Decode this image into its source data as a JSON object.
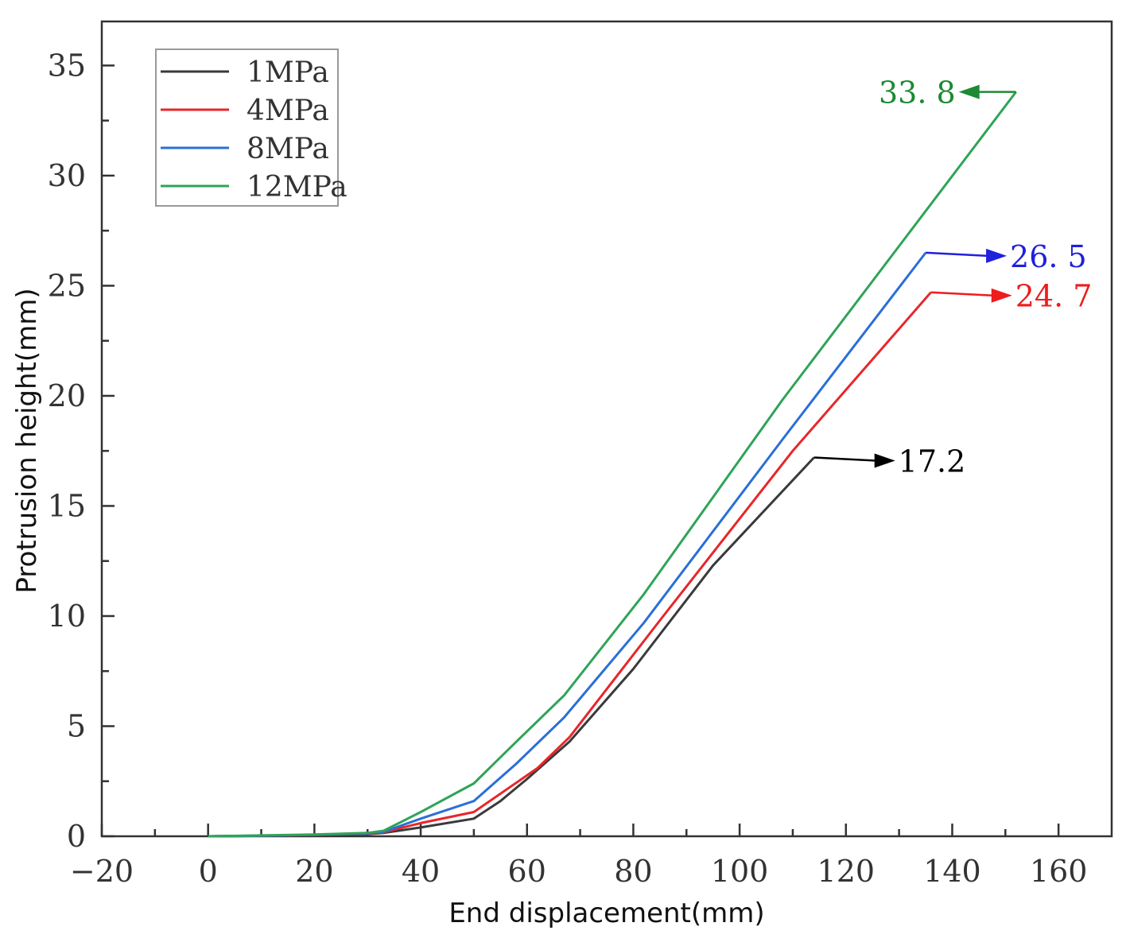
{
  "chart_data": {
    "type": "line",
    "title": "",
    "xlabel": "End displacement(mm)",
    "ylabel": "Protrusion height(mm)",
    "xlim": [
      -20,
      170
    ],
    "ylim": [
      0,
      37
    ],
    "x_ticks": [
      -20,
      0,
      20,
      40,
      60,
      80,
      100,
      120,
      140,
      160
    ],
    "x_tick_labels": [
      "−20",
      "0",
      "20",
      "40",
      "60",
      "80",
      "100",
      "120",
      "140",
      "160"
    ],
    "y_ticks": [
      0,
      5,
      10,
      15,
      20,
      25,
      30,
      35
    ],
    "y_tick_labels": [
      "0",
      "5",
      "10",
      "15",
      "20",
      "25",
      "30",
      "35"
    ],
    "grid": false,
    "legend_position": "top-left",
    "series": [
      {
        "name": "1MPa",
        "color": "#3a3a3a",
        "points": [
          [
            0,
            0
          ],
          [
            10,
            0.02
          ],
          [
            20,
            0.05
          ],
          [
            30,
            0.1
          ],
          [
            33,
            0.15
          ],
          [
            40,
            0.4
          ],
          [
            50,
            0.8
          ],
          [
            55,
            1.6
          ],
          [
            60,
            2.6
          ],
          [
            68,
            4.3
          ],
          [
            80,
            7.6
          ],
          [
            95,
            12.3
          ],
          [
            114,
            17.2
          ]
        ]
      },
      {
        "name": "4MPa",
        "color": "#e8262a",
        "points": [
          [
            0,
            0
          ],
          [
            10,
            0.03
          ],
          [
            20,
            0.06
          ],
          [
            30,
            0.12
          ],
          [
            33,
            0.18
          ],
          [
            40,
            0.6
          ],
          [
            50,
            1.1
          ],
          [
            56,
            2.1
          ],
          [
            62,
            3.1
          ],
          [
            68,
            4.5
          ],
          [
            85,
            9.8
          ],
          [
            110,
            17.5
          ],
          [
            136,
            24.7
          ]
        ]
      },
      {
        "name": "8MPa",
        "color": "#2a6fd6",
        "points": [
          [
            0,
            0
          ],
          [
            10,
            0.03
          ],
          [
            20,
            0.07
          ],
          [
            30,
            0.13
          ],
          [
            33,
            0.2
          ],
          [
            40,
            0.8
          ],
          [
            50,
            1.6
          ],
          [
            58,
            3.3
          ],
          [
            67,
            5.4
          ],
          [
            82,
            9.7
          ],
          [
            108,
            18.0
          ],
          [
            135,
            26.5
          ]
        ]
      },
      {
        "name": "12MPa",
        "color": "#2ea457",
        "points": [
          [
            0,
            0
          ],
          [
            10,
            0.04
          ],
          [
            20,
            0.08
          ],
          [
            30,
            0.15
          ],
          [
            33,
            0.25
          ],
          [
            40,
            1.1
          ],
          [
            50,
            2.4
          ],
          [
            58,
            4.3
          ],
          [
            67,
            6.4
          ],
          [
            82,
            11.0
          ],
          [
            108,
            19.8
          ],
          [
            152,
            33.8
          ]
        ]
      }
    ],
    "annotations": [
      {
        "series": "1MPa",
        "text": "17.2",
        "color": "#000000",
        "side": "right",
        "x": 114,
        "y": 17.2
      },
      {
        "series": "4MPa",
        "text": "24. 7",
        "color": "#ee1c1c",
        "side": "right",
        "x": 136,
        "y": 24.7
      },
      {
        "series": "8MPa",
        "text": "26. 5",
        "color": "#2020dd",
        "side": "right",
        "x": 135,
        "y": 26.5
      },
      {
        "series": "12MPa",
        "text": "33. 8",
        "color": "#1c8a33",
        "side": "left",
        "x": 152,
        "y": 33.8
      }
    ]
  }
}
